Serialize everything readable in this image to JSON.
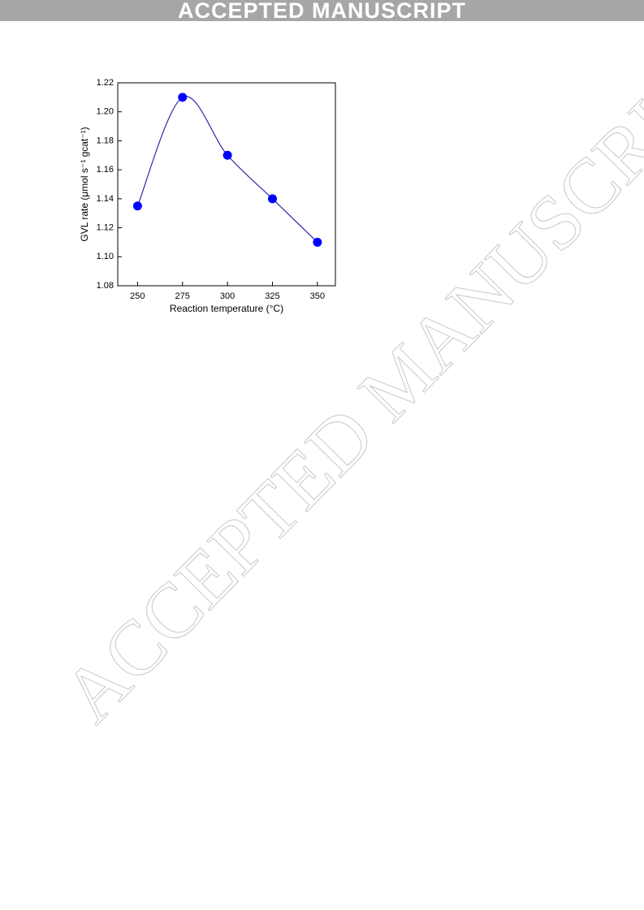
{
  "header": "ACCEPTED MANUSCRIPT",
  "watermark": "ACCEPTED MANUSCRIPT",
  "chart_data": {
    "type": "line",
    "x": [
      250,
      275,
      300,
      325,
      350
    ],
    "values": [
      1.135,
      1.21,
      1.17,
      1.14,
      1.11
    ],
    "color": "#0000ff",
    "line_color": "#2a2aa8",
    "xlabel": "Reaction temperature (°C)",
    "ylabel": "GVL rate (μmol s⁻¹ gcat⁻¹)",
    "xlim": [
      239,
      360
    ],
    "xticks": [
      250,
      275,
      300,
      325,
      350
    ],
    "ylim": [
      1.08,
      1.22
    ],
    "yticks": [
      1.08,
      {
        "value": 1.1,
        "label": "1.10"
      },
      1.12,
      1.14,
      1.16,
      1.18,
      {
        "value": 1.2,
        "label": "1.20"
      },
      1.22
    ]
  }
}
